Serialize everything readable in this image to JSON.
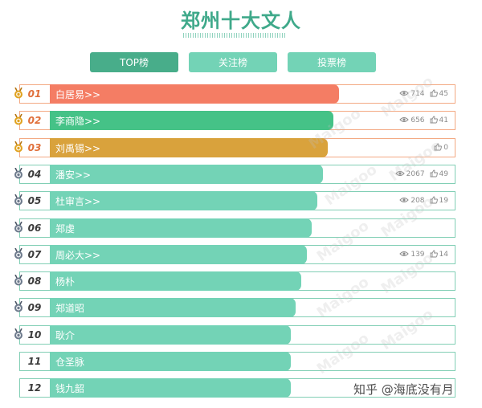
{
  "page": {
    "title": "郑州十大文人",
    "credit": "知乎 @海底没有月",
    "watermark": "Maigoo",
    "accent": "#48ad8a"
  },
  "tabs": [
    {
      "label": "TOP榜",
      "active": true
    },
    {
      "label": "关注榜",
      "active": false
    },
    {
      "label": "投票榜",
      "active": false
    }
  ],
  "icons": {
    "views": "eye-icon",
    "likes": "thumbs-up-icon",
    "medal": "rank-medal-icon"
  },
  "rows": [
    {
      "rank": "01",
      "name": "白居易>>",
      "views": "714",
      "likes": "45",
      "color": "#f47d64",
      "medal": "gold",
      "highlight": true,
      "level": 0.765
    },
    {
      "rank": "02",
      "name": "李商隐>>",
      "views": "656",
      "likes": "41",
      "color": "#45c287",
      "medal": "gold",
      "highlight": true,
      "level": 0.751
    },
    {
      "rank": "03",
      "name": "刘禹锡>>",
      "views": "",
      "likes": "0",
      "color": "#d9a23c",
      "medal": "gold",
      "highlight": true,
      "level": 0.737
    },
    {
      "rank": "04",
      "name": "潘安>>",
      "views": "2067",
      "likes": "49",
      "color": "#73d3b6",
      "medal": "silver",
      "highlight": false,
      "level": 0.723
    },
    {
      "rank": "05",
      "name": "杜审言>>",
      "views": "208",
      "likes": "19",
      "color": "#73d3b6",
      "medal": "silver",
      "highlight": false,
      "level": 0.709
    },
    {
      "rank": "06",
      "name": "郑虔",
      "views": "",
      "likes": "",
      "color": "#73d3b6",
      "medal": "silver",
      "highlight": false,
      "level": 0.694
    },
    {
      "rank": "07",
      "name": "周必大>>",
      "views": "139",
      "likes": "14",
      "color": "#73d3b6",
      "medal": "silver",
      "highlight": false,
      "level": 0.68
    },
    {
      "rank": "08",
      "name": "杨朴",
      "views": "",
      "likes": "",
      "color": "#73d3b6",
      "medal": "silver",
      "highlight": false,
      "level": 0.666
    },
    {
      "rank": "09",
      "name": "郑道昭",
      "views": "",
      "likes": "",
      "color": "#73d3b6",
      "medal": "silver",
      "highlight": false,
      "level": 0.652
    },
    {
      "rank": "10",
      "name": "耿介",
      "views": "",
      "likes": "",
      "color": "#73d3b6",
      "medal": "silver",
      "highlight": false,
      "level": 0.638
    },
    {
      "rank": "11",
      "name": "仓圣脉",
      "views": "",
      "likes": "",
      "color": "#73d3b6",
      "medal": "none",
      "highlight": false,
      "level": 0.638
    },
    {
      "rank": "12",
      "name": "钱九韶",
      "views": "",
      "likes": "",
      "color": "#73d3b6",
      "medal": "none",
      "highlight": false,
      "level": 0.638
    }
  ]
}
